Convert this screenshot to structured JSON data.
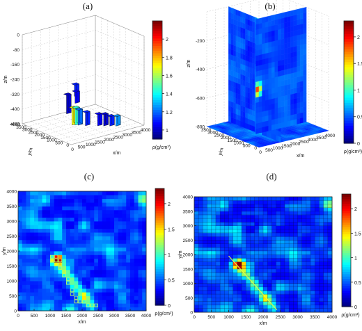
{
  "chart_data": [
    {
      "id": "a",
      "panel_label": "(a)",
      "type": "3d-bar",
      "xlabel": "x/m",
      "ylabel": "y/m",
      "zlabel": "z/m",
      "x_ticks": [
        "0",
        "500",
        "1000",
        "1500",
        "2000",
        "2500",
        "3000",
        "3500",
        "4000"
      ],
      "y_ticks": [
        "0",
        "500",
        "1000",
        "1500",
        "2000",
        "2500",
        "3000",
        "3500",
        "4000"
      ],
      "z_ticks": [
        "0",
        "-80",
        "-160",
        "-240",
        "-320",
        "-400",
        "-480"
      ],
      "colorbar": {
        "label": "ρ(g/cm³)",
        "ticks": [
          "1",
          "1.2",
          "1.4",
          "1.6",
          "1.8",
          "2"
        ],
        "min": 0.9,
        "max": 2.2
      },
      "blocks": [
        {
          "x": 2400,
          "y": 3900,
          "z0": -380,
          "z1": -480,
          "v": 1.0
        },
        {
          "x": 2300,
          "y": 3100,
          "z0": -300,
          "z1": -360,
          "v": 1.1
        },
        {
          "x": 2200,
          "y": 2900,
          "z0": -330,
          "z1": -390,
          "v": 1.05
        },
        {
          "x": 1700,
          "y": 2400,
          "z0": -390,
          "z1": -480,
          "v": 1.7
        },
        {
          "x": 1800,
          "y": 2300,
          "z0": -390,
          "z1": -480,
          "v": 1.45
        },
        {
          "x": 1900,
          "y": 2200,
          "z0": -400,
          "z1": -480,
          "v": 1.2
        },
        {
          "x": 2100,
          "y": 1900,
          "z0": -410,
          "z1": -480,
          "v": 1.1
        },
        {
          "x": 2500,
          "y": 1500,
          "z0": -420,
          "z1": -480,
          "v": 1.05
        },
        {
          "x": 2700,
          "y": 1300,
          "z0": -420,
          "z1": -480,
          "v": 1.0
        },
        {
          "x": 2900,
          "y": 1100,
          "z0": -430,
          "z1": -480,
          "v": 1.1
        },
        {
          "x": 3100,
          "y": 900,
          "z0": -430,
          "z1": -480,
          "v": 1.25
        }
      ]
    },
    {
      "id": "b",
      "panel_label": "(b)",
      "type": "3d-slice",
      "xlabel": "x/m",
      "ylabel": "y/m",
      "zlabel": "z/m",
      "x_ticks": [
        "0",
        "500",
        "1000",
        "1500",
        "2000",
        "2500",
        "3000",
        "3500",
        "4000"
      ],
      "y_ticks": [
        "0",
        "500",
        "1000",
        "1500",
        "2000",
        "2500",
        "3000",
        "3500"
      ],
      "z_ticks": [
        "-200",
        "-400",
        "-600",
        "-800"
      ],
      "colorbar": {
        "label": "ρ(g/cm³)",
        "ticks": [
          "0",
          "0.5",
          "1",
          "1.5",
          "2"
        ],
        "min": 0,
        "max": 2.3
      },
      "anomaly": {
        "x": 1250,
        "y": 1700,
        "z": -500,
        "v": 2.2
      }
    },
    {
      "id": "c",
      "panel_label": "(c)",
      "type": "heatmap",
      "xlabel": "x/m",
      "ylabel": "y/m",
      "x_ticks": [
        "0",
        "500",
        "1000",
        "1500",
        "2000",
        "2500",
        "3000",
        "3500",
        "4000"
      ],
      "y_ticks": [
        "0",
        "500",
        "1000",
        "1500",
        "2000",
        "2500",
        "3000",
        "3500",
        "4000"
      ],
      "xlim": [
        0,
        4000
      ],
      "ylim": [
        0,
        4000
      ],
      "grid_cells": 32,
      "colorbar": {
        "label": "ρ(g/cm³)",
        "ticks": [
          "0",
          "0.5",
          "1",
          "1.5",
          "2"
        ],
        "min": 0,
        "max": 2.3
      },
      "peak": {
        "x": 1220,
        "y": 1720,
        "v": 2.2
      },
      "highlight_cells": [
        [
          1100,
          1800
        ],
        [
          1225,
          1800
        ],
        [
          1100,
          1675
        ],
        [
          1225,
          1675
        ],
        [
          1350,
          1675
        ],
        [
          1225,
          1550
        ],
        [
          1350,
          1550
        ],
        [
          1350,
          1425
        ],
        [
          1475,
          1300
        ],
        [
          1475,
          1175
        ],
        [
          1600,
          1050
        ],
        [
          1600,
          925
        ],
        [
          1725,
          675
        ],
        [
          1725,
          550
        ],
        [
          1850,
          425
        ],
        [
          1975,
          300
        ],
        [
          2100,
          300
        ],
        [
          2225,
          175
        ],
        [
          2350,
          175
        ],
        [
          2475,
          175
        ],
        [
          1850,
          300
        ]
      ]
    },
    {
      "id": "d",
      "panel_label": "(d)",
      "type": "heatmap",
      "xlabel": "x/m",
      "ylabel": "y/m",
      "x_ticks": [
        "0",
        "500",
        "1000",
        "1500",
        "2000",
        "2500",
        "3000",
        "3500",
        "4000"
      ],
      "y_ticks": [
        "0",
        "500",
        "1000",
        "1500",
        "2000",
        "2500",
        "3000",
        "3500",
        "4000"
      ],
      "xlim": [
        0,
        4000
      ],
      "ylim": [
        0,
        4000
      ],
      "grid_cells": 32,
      "colorbar": {
        "label": "ρ(g/cm³)",
        "ticks": [
          "0",
          "0.5",
          "1",
          "1.5",
          "2"
        ],
        "min": 0,
        "max": 2.3
      },
      "peak": {
        "x": 1300,
        "y": 1650,
        "v": 2.2
      },
      "trend_line": [
        [
          1000,
          1950
        ],
        [
          2400,
          80
        ]
      ]
    }
  ]
}
